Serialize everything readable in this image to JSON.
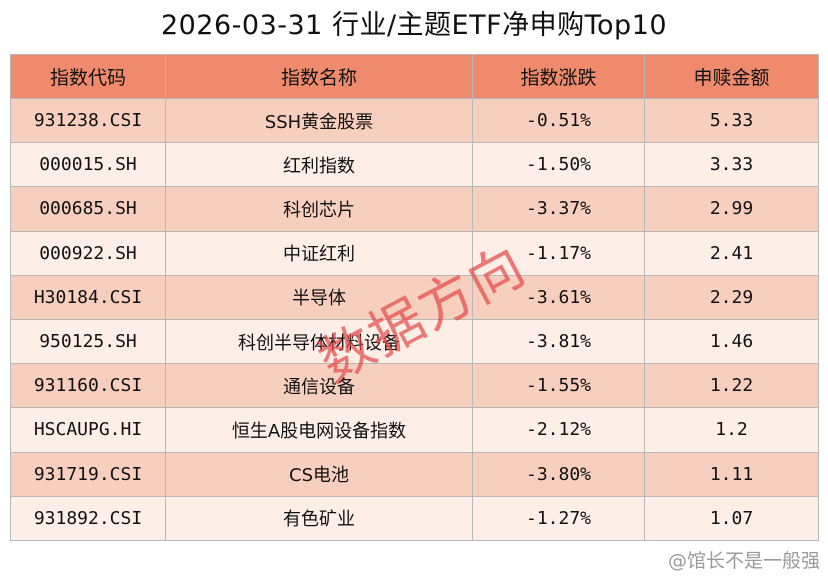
{
  "title": "2026-03-31 行业/主题ETF净申购Top10",
  "table": {
    "headers": [
      "指数代码",
      "指数名称",
      "指数涨跌",
      "申赎金额"
    ],
    "rows": [
      {
        "code": "931238.CSI",
        "name": "SSH黄金股票",
        "change": "-0.51%",
        "amount": "5.33"
      },
      {
        "code": "000015.SH",
        "name": "红利指数",
        "change": "-1.50%",
        "amount": "3.33"
      },
      {
        "code": "000685.SH",
        "name": "科创芯片",
        "change": "-3.37%",
        "amount": "2.99"
      },
      {
        "code": "000922.SH",
        "name": "中证红利",
        "change": "-1.17%",
        "amount": "2.41"
      },
      {
        "code": "H30184.CSI",
        "name": "半导体",
        "change": "-3.61%",
        "amount": "2.29"
      },
      {
        "code": "950125.SH",
        "name": "科创半导体材料设备",
        "change": "-3.81%",
        "amount": "1.46"
      },
      {
        "code": "931160.CSI",
        "name": "通信设备",
        "change": "-1.55%",
        "amount": "1.22"
      },
      {
        "code": "HSCAUPG.HI",
        "name": "恒生A股电网设备指数",
        "change": "-2.12%",
        "amount": "1.2"
      },
      {
        "code": "931719.CSI",
        "name": "CS电池",
        "change": "-3.80%",
        "amount": "1.11"
      },
      {
        "code": "931892.CSI",
        "name": "有色矿业",
        "change": "-1.27%",
        "amount": "1.07"
      }
    ]
  },
  "watermark": "数据方向",
  "credit": "@馆长不是一般强",
  "colors": {
    "header": "#ef8a6d",
    "row_odd": "#f7cfbf",
    "row_even": "#fdeee7",
    "watermark": "#e44646"
  }
}
